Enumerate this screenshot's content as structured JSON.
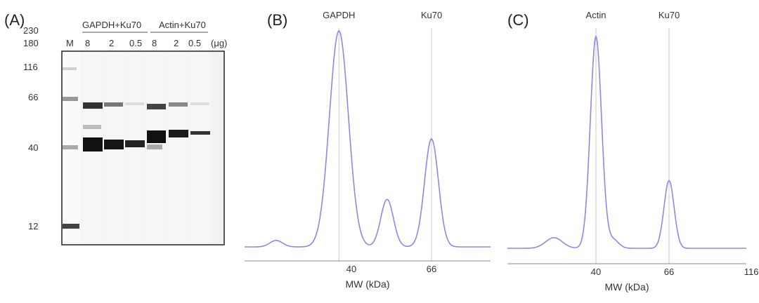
{
  "panel_a": {
    "label": "(A)",
    "groups": [
      "GAPDH+Ku70",
      "Actin+Ku70"
    ],
    "marker_label": "M",
    "lanes": [
      "8",
      "2",
      "0.5",
      "8",
      "2",
      "0.5"
    ],
    "unit": "(μg)",
    "mw_ladder": [
      230,
      180,
      116,
      66,
      40,
      12
    ]
  },
  "colors": {
    "trace": "#8a8ae6",
    "band": "#111111",
    "peak_line": "#cccccc",
    "axis": "#888888"
  },
  "chart_data": [
    {
      "type": "line",
      "panel_label": "(B)",
      "xlabel": "MW (kDa)",
      "x_ticks": [
        40,
        66
      ],
      "peak_labels": [
        "GAPDH",
        "Ku70"
      ],
      "peaks": [
        {
          "position": 37,
          "height": 1.0,
          "width": 1.5
        },
        {
          "position": 50,
          "height": 0.22,
          "width": 1.0
        },
        {
          "position": 66,
          "height": 0.5,
          "width": 1.1
        },
        {
          "position": 25,
          "height": 0.03,
          "width": 1.0
        }
      ],
      "baseline": 0.0
    },
    {
      "type": "line",
      "panel_label": "(C)",
      "xlabel": "MW (kDa)",
      "x_ticks": [
        40,
        66,
        116
      ],
      "peak_labels": [
        "Actin",
        "Ku70"
      ],
      "peaks": [
        {
          "position": 40,
          "height": 1.0,
          "width": 1.0
        },
        {
          "position": 66,
          "height": 0.32,
          "width": 0.9
        },
        {
          "position": 45,
          "height": 0.04,
          "width": 1.0
        },
        {
          "position": 30,
          "height": 0.05,
          "width": 1.5
        }
      ],
      "baseline": 0.0
    }
  ]
}
